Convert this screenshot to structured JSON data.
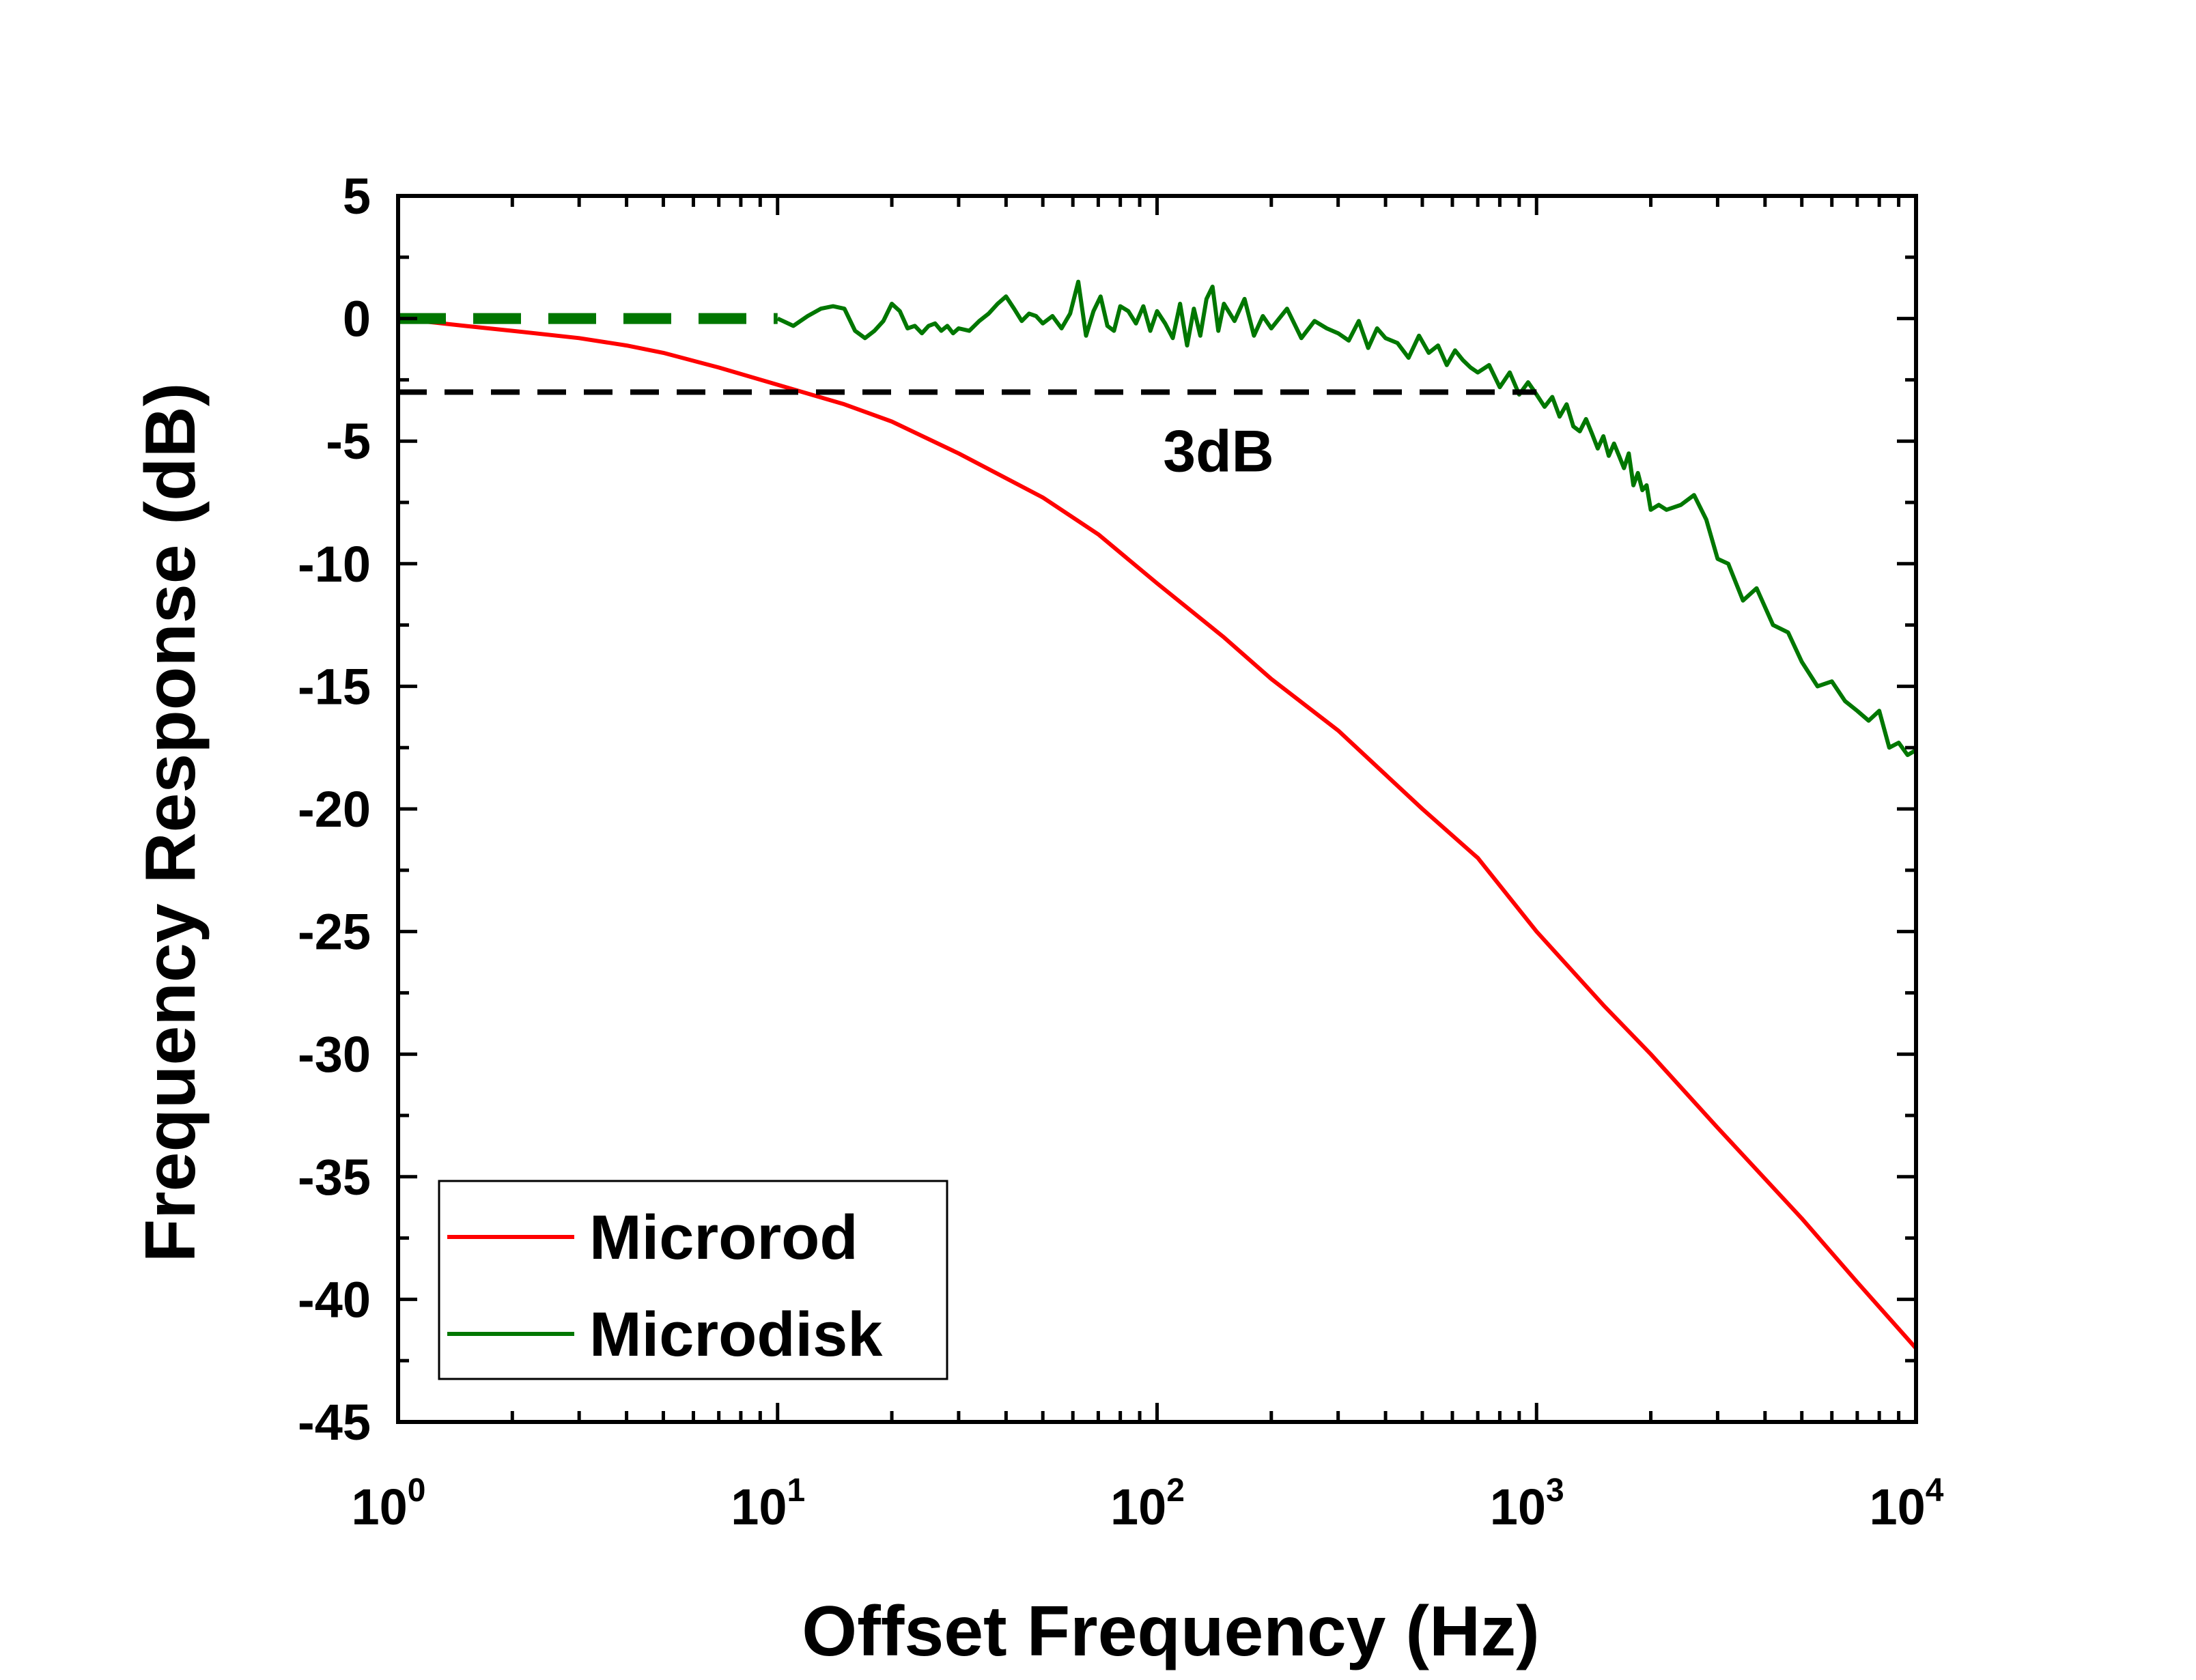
{
  "chart_data": {
    "type": "line",
    "title": "",
    "xlabel": "Offset Frequency (Hz)",
    "ylabel": "Frequency Response (dB)",
    "xscale": "log",
    "xlim": [
      1,
      10000
    ],
    "ylim": [
      -45,
      5
    ],
    "x_ticks": [
      {
        "value": 1,
        "base": "10",
        "exp": "0"
      },
      {
        "value": 10,
        "base": "10",
        "exp": "1"
      },
      {
        "value": 100,
        "base": "10",
        "exp": "2"
      },
      {
        "value": 1000,
        "base": "10",
        "exp": "3"
      },
      {
        "value": 10000,
        "base": "10",
        "exp": "4"
      }
    ],
    "y_ticks": [
      {
        "value": 5,
        "label": "5"
      },
      {
        "value": 0,
        "label": "0"
      },
      {
        "value": -5,
        "label": "-5"
      },
      {
        "value": -10,
        "label": "-10"
      },
      {
        "value": -15,
        "label": "-15"
      },
      {
        "value": -20,
        "label": "-20"
      },
      {
        "value": -25,
        "label": "-25"
      },
      {
        "value": -30,
        "label": "-30"
      },
      {
        "value": -35,
        "label": "-35"
      },
      {
        "value": -40,
        "label": "-40"
      },
      {
        "value": -45,
        "label": "-45"
      }
    ],
    "grid": false,
    "legend_position": "bottom-left",
    "series": [
      {
        "name": "Microrod",
        "color": "#ff0000",
        "x": [
          1,
          1.5,
          2,
          3,
          4,
          5,
          7,
          10,
          15,
          20,
          30,
          50,
          70,
          100,
          150,
          200,
          300,
          500,
          700,
          1000,
          1500,
          2000,
          3000,
          5000,
          7000,
          10000
        ],
        "y": [
          0,
          -0.3,
          -0.5,
          -0.8,
          -1.1,
          -1.4,
          -2.0,
          -2.7,
          -3.5,
          -4.2,
          -5.5,
          -7.3,
          -8.8,
          -10.8,
          -13.0,
          -14.7,
          -16.8,
          -20.0,
          -22.0,
          -25.0,
          -28.0,
          -30.0,
          -33.0,
          -36.7,
          -39.3,
          -42.0
        ]
      },
      {
        "name": "Microdisk",
        "color": "#007700",
        "x": [
          1,
          1.3,
          1.7,
          2.2,
          3,
          4,
          5,
          6.5,
          8,
          10,
          11,
          12,
          13,
          14,
          15,
          16,
          17,
          18,
          19,
          20,
          21,
          22,
          23,
          24,
          25,
          26,
          27,
          28,
          29,
          30,
          32,
          34,
          36,
          38,
          40,
          42,
          44,
          46,
          48,
          50,
          53,
          56,
          59,
          62,
          65,
          68,
          71,
          74,
          77,
          80,
          84,
          88,
          92,
          96,
          100,
          105,
          110,
          115,
          120,
          125,
          130,
          135,
          140,
          145,
          150,
          160,
          170,
          180,
          190,
          200,
          220,
          240,
          260,
          280,
          300,
          320,
          340,
          360,
          380,
          400,
          430,
          460,
          490,
          520,
          550,
          580,
          610,
          640,
          670,
          700,
          750,
          800,
          850,
          900,
          950,
          1000,
          1050,
          1100,
          1150,
          1200,
          1250,
          1300,
          1350,
          1400,
          1450,
          1500,
          1550,
          1600,
          1650,
          1700,
          1750,
          1800,
          1850,
          1900,
          1950,
          2000,
          2100,
          2200,
          2400,
          2600,
          2800,
          3000,
          3200,
          3500,
          3800,
          4200,
          4600,
          5000,
          5500,
          6000,
          6500,
          7000,
          7500,
          8000,
          8500,
          9000,
          9500,
          10000
        ],
        "y": [
          0,
          0,
          0,
          0,
          0,
          0,
          0,
          0,
          0,
          0,
          -0.3,
          0.1,
          0.4,
          0.5,
          0.4,
          -0.5,
          -0.8,
          -0.5,
          -0.1,
          0.6,
          0.3,
          -0.4,
          -0.3,
          -0.6,
          -0.3,
          -0.2,
          -0.5,
          -0.3,
          -0.6,
          -0.4,
          -0.5,
          -0.1,
          0.2,
          0.6,
          0.9,
          0.4,
          -0.1,
          0.2,
          0.1,
          -0.2,
          0.1,
          -0.4,
          0.2,
          1.5,
          -0.7,
          0.3,
          0.9,
          -0.3,
          -0.5,
          0.5,
          0.3,
          -0.2,
          0.5,
          -0.5,
          0.3,
          -0.2,
          -0.8,
          0.6,
          -1.1,
          0.4,
          -0.7,
          0.8,
          1.3,
          -0.5,
          0.6,
          -0.1,
          0.8,
          -0.7,
          0.1,
          -0.4,
          0.4,
          -0.8,
          -0.1,
          -0.4,
          -0.6,
          -0.9,
          -0.1,
          -1.2,
          -0.4,
          -0.8,
          -1.0,
          -1.6,
          -0.7,
          -1.4,
          -1.1,
          -1.9,
          -1.3,
          -1.7,
          -2.0,
          -2.2,
          -1.9,
          -2.8,
          -2.2,
          -3.1,
          -2.6,
          -3.1,
          -3.6,
          -3.2,
          -4.0,
          -3.5,
          -4.4,
          -4.6,
          -4.1,
          -4.7,
          -5.3,
          -4.8,
          -5.6,
          -5.1,
          -5.6,
          -6.1,
          -5.5,
          -6.8,
          -6.3,
          -7.0,
          -6.8,
          -7.8,
          -7.6,
          -7.8,
          -7.6,
          -7.2,
          -8.2,
          -9.8,
          -10.0,
          -11.5,
          -11.0,
          -12.5,
          -12.8,
          -14.0,
          -15.0,
          -14.8,
          -15.6,
          -16.0,
          -16.4,
          -16.0,
          -17.5,
          -17.3,
          -17.8,
          -17.6
        ]
      }
    ],
    "reference_line": {
      "y": -3,
      "x": [
        1,
        1000
      ],
      "style": "dashed",
      "color": "#000000"
    },
    "microdisk_dashed_segment": {
      "x": [
        1,
        10
      ],
      "y": 0,
      "color": "#007700"
    },
    "annotations": [
      {
        "text": "3dB",
        "x": 100,
        "y": -5.4
      }
    ],
    "colors": {
      "axis": "#000000",
      "microrod": "#ff0000",
      "microdisk": "#007700",
      "reference": "#000000",
      "background": "#ffffff"
    }
  }
}
